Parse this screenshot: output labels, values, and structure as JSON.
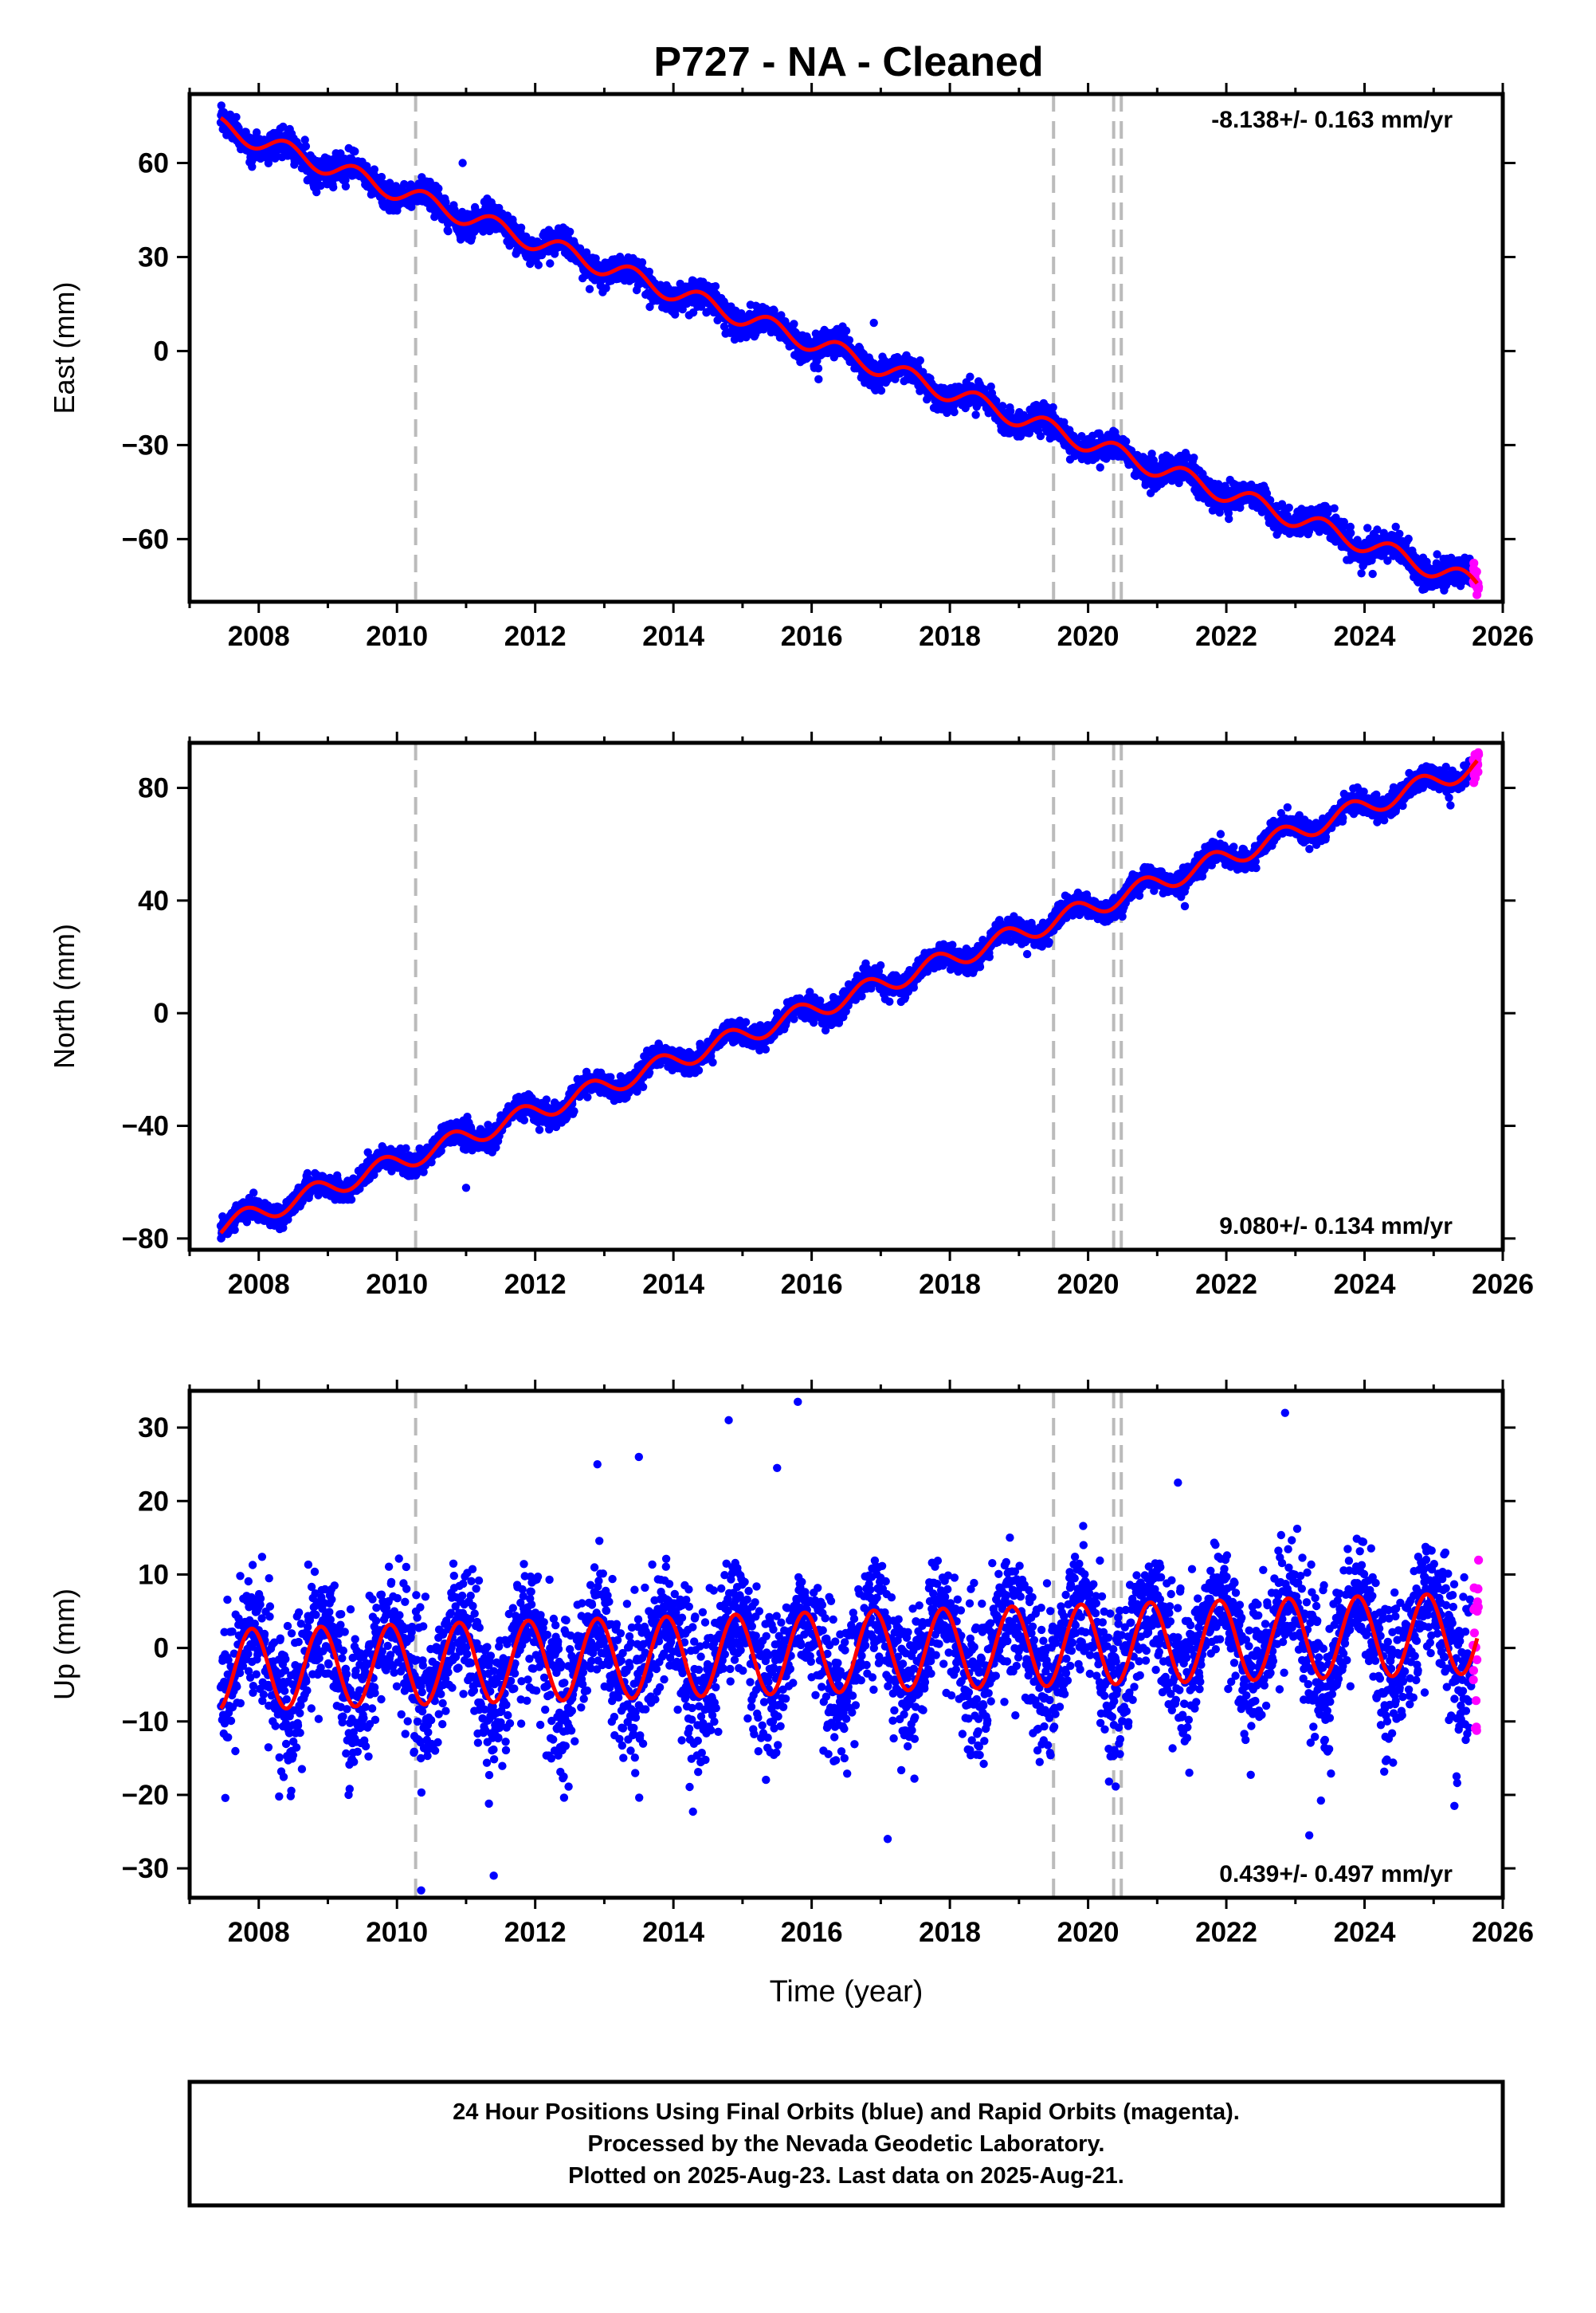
{
  "title": "P727  - NA - Cleaned",
  "colors": {
    "final_orbits": "#0000ff",
    "rapid_orbits": "#ff00ff",
    "model": "#ff0000",
    "event_lines": "#bbbbbb",
    "frame": "#000000"
  },
  "footer": {
    "line1": "24 Hour Positions Using Final Orbits (blue) and Rapid Orbits (magenta).",
    "line2": "Processed by the Nevada Geodetic Laboratory.",
    "line3": "Plotted on 2025-Aug-23. Last data on 2025-Aug-21."
  },
  "chart_data": [
    {
      "type": "scatter",
      "component": "east",
      "ylabel": "East (mm)",
      "xlabel": "",
      "xlim": [
        2007.0,
        2026.0
      ],
      "ylim": [
        -80,
        82
      ],
      "xticks": [
        2008,
        2010,
        2012,
        2014,
        2016,
        2018,
        2020,
        2022,
        2024,
        2026
      ],
      "yticks": [
        -60,
        -30,
        0,
        30,
        60
      ],
      "rate_label": "-8.138+/- 0.163 mm/yr",
      "rate_label_position": "top-right",
      "model": {
        "start_year": 2007.45,
        "end_year": 2025.63,
        "start_value": 71.5,
        "end_value": -74.5,
        "annual_amplitude": 3.0,
        "annual_phase": 0.15
      },
      "scatter_sigma": 2.2,
      "event_lines": [
        2010.27,
        2019.5,
        2020.37,
        2020.48
      ],
      "outliers": [
        [
          2010.95,
          60
        ],
        [
          2016.9,
          9
        ],
        [
          2016.1,
          -9
        ],
        [
          2025.2,
          -71
        ]
      ]
    },
    {
      "type": "scatter",
      "component": "north",
      "ylabel": "North (mm)",
      "xlabel": "",
      "xlim": [
        2007.0,
        2026.0
      ],
      "ylim": [
        -84,
        96
      ],
      "xticks": [
        2008,
        2010,
        2012,
        2014,
        2016,
        2018,
        2020,
        2022,
        2024,
        2026
      ],
      "yticks": [
        -80,
        -40,
        0,
        40,
        80
      ],
      "rate_label": "9.080+/- 0.134 mm/yr",
      "rate_label_position": "bottom-right",
      "model": {
        "start_year": 2007.45,
        "end_year": 2025.63,
        "start_value": -76.0,
        "end_value": 88.0,
        "annual_amplitude": 3.5,
        "annual_phase": 0.55
      },
      "scatter_sigma": 2.0,
      "event_lines": [
        2010.27,
        2019.5,
        2020.37,
        2020.48
      ],
      "outliers": [
        [
          2011.0,
          -62
        ],
        [
          2021.4,
          38
        ]
      ]
    },
    {
      "type": "scatter",
      "component": "up",
      "ylabel": "Up (mm)",
      "xlabel": "Time (year)",
      "xlim": [
        2007.0,
        2026.0
      ],
      "ylim": [
        -34,
        35
      ],
      "xticks": [
        2008,
        2010,
        2012,
        2014,
        2016,
        2018,
        2020,
        2022,
        2024,
        2026
      ],
      "yticks": [
        -30,
        -20,
        -10,
        0,
        10,
        20,
        30
      ],
      "rate_label": "0.439+/- 0.497 mm/yr",
      "rate_label_position": "bottom-right",
      "model": {
        "start_year": 2007.45,
        "end_year": 2025.63,
        "start_value": -3.0,
        "end_value": 2.0,
        "annual_amplitude": 5.5,
        "annual_phase": 0.65
      },
      "scatter_sigma": 4.0,
      "event_lines": [
        2010.27,
        2019.5,
        2020.37,
        2020.48
      ],
      "outliers": [
        [
          2010.35,
          -33
        ],
        [
          2011.4,
          -31
        ],
        [
          2015.8,
          33.5
        ],
        [
          2022.85,
          32
        ],
        [
          2014.8,
          31
        ],
        [
          2013.5,
          26
        ],
        [
          2012.9,
          25
        ],
        [
          2017.1,
          -26
        ],
        [
          2023.2,
          -25.5
        ],
        [
          2025.3,
          -21.5
        ],
        [
          2015.5,
          24.5
        ],
        [
          2021.3,
          22.5
        ],
        [
          2009.3,
          -20
        ]
      ]
    }
  ]
}
